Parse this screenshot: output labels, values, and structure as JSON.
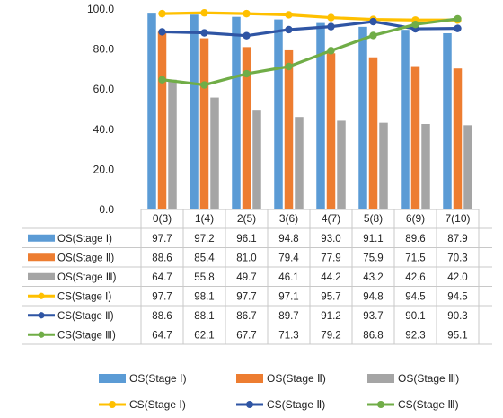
{
  "chart_data": {
    "type": "bar",
    "categories": [
      "0(3)",
      "1(4)",
      "2(5)",
      "3(6)",
      "4(7)",
      "5(8)",
      "6(9)",
      "7(10)"
    ],
    "ylim": [
      0,
      100
    ],
    "yticks": [
      "0.0",
      "20.0",
      "40.0",
      "60.0",
      "80.0",
      "100.0"
    ],
    "bar_series": [
      {
        "name": "OS(Stage Ⅰ)",
        "color": "#5B9BD5",
        "values": [
          97.7,
          97.2,
          96.1,
          94.8,
          93.0,
          91.1,
          89.6,
          87.9
        ]
      },
      {
        "name": "OS(Stage Ⅱ)",
        "color": "#ED7D31",
        "values": [
          88.6,
          85.4,
          81.0,
          79.4,
          77.9,
          75.9,
          71.5,
          70.3
        ]
      },
      {
        "name": "OS(Stage Ⅲ)",
        "color": "#A5A5A5",
        "values": [
          64.7,
          55.8,
          49.7,
          46.1,
          44.2,
          43.2,
          42.6,
          42.0
        ]
      }
    ],
    "line_series": [
      {
        "name": "CS(Stage Ⅰ)",
        "color": "#FFC000",
        "values": [
          97.7,
          98.1,
          97.7,
          97.1,
          95.7,
          94.8,
          94.5,
          94.5
        ]
      },
      {
        "name": "CS(Stage Ⅱ)",
        "color": "#2F55A4",
        "values": [
          88.6,
          88.1,
          86.7,
          89.7,
          91.2,
          93.7,
          90.1,
          90.3
        ]
      },
      {
        "name": "CS(Stage Ⅲ)",
        "color": "#70AD47",
        "values": [
          64.7,
          62.1,
          67.7,
          71.3,
          79.2,
          86.8,
          92.3,
          95.1
        ]
      }
    ],
    "value_format": "0.0",
    "grid": false,
    "legend_position": "bottom",
    "data_table": true
  }
}
